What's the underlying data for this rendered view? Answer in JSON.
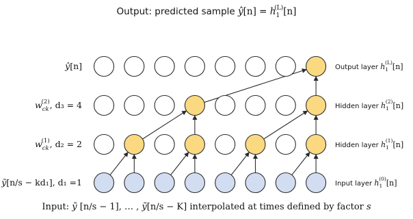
{
  "title": {
    "prefix": "Output: predicted sample ",
    "lhs_base": "ŷ",
    "lhs_arg": "[n]",
    "eq": " = ",
    "rhs_base": "h",
    "rhs_sub": "1",
    "rhs_sup": "(L)",
    "rhs_arg": "[n]"
  },
  "rows": [
    {
      "id": "output",
      "left": {
        "base": "ŷ",
        "sub": "",
        "sup": "",
        "tail": "[n]"
      },
      "right": {
        "text": "Output layer ",
        "base": "h",
        "sub": "1",
        "sup": "(L)",
        "arg": "[n]"
      },
      "fill": "#fbd980",
      "highlighted": [
        7
      ]
    },
    {
      "id": "hidden2",
      "left": {
        "base": "w",
        "sub": "ck",
        "sup": "(2)",
        "tail": ", d₃ = 4"
      },
      "right": {
        "text": "Hidden layer ",
        "base": "h",
        "sub": "1",
        "sup": "(2)",
        "arg": "[n]"
      },
      "fill": "#fbd980",
      "highlighted": [
        3,
        7
      ]
    },
    {
      "id": "hidden1",
      "left": {
        "base": "w",
        "sub": "ck",
        "sup": "(1)",
        "tail": ", d₂ = 2"
      },
      "right": {
        "text": "Hidden layer ",
        "base": "h",
        "sub": "1",
        "sup": "(1)",
        "arg": "[n]"
      },
      "fill": "#fbd980",
      "highlighted": [
        1,
        3,
        5,
        7
      ]
    },
    {
      "id": "input",
      "left": {
        "base": "ỹ",
        "sub": "",
        "sup": "",
        "tail": "[n/s − kd₁], d₁ =1"
      },
      "right": {
        "text": "Input layer ",
        "base": "h",
        "sub": "1",
        "sup": "(0)",
        "arg": "[n]"
      },
      "fill": "#d3ddf1",
      "highlighted": [
        0,
        1,
        2,
        3,
        4,
        5,
        6,
        7
      ]
    }
  ],
  "columns": 8,
  "edges": [
    {
      "from_row": "input",
      "from_col": 0,
      "to_row": "hidden1",
      "to_col": 1
    },
    {
      "from_row": "input",
      "from_col": 1,
      "to_row": "hidden1",
      "to_col": 1
    },
    {
      "from_row": "input",
      "from_col": 2,
      "to_row": "hidden1",
      "to_col": 3
    },
    {
      "from_row": "input",
      "from_col": 3,
      "to_row": "hidden1",
      "to_col": 3
    },
    {
      "from_row": "input",
      "from_col": 4,
      "to_row": "hidden1",
      "to_col": 5
    },
    {
      "from_row": "input",
      "from_col": 5,
      "to_row": "hidden1",
      "to_col": 5
    },
    {
      "from_row": "input",
      "from_col": 6,
      "to_row": "hidden1",
      "to_col": 7
    },
    {
      "from_row": "input",
      "from_col": 7,
      "to_row": "hidden1",
      "to_col": 7
    },
    {
      "from_row": "hidden1",
      "from_col": 1,
      "to_row": "hidden2",
      "to_col": 3
    },
    {
      "from_row": "hidden1",
      "from_col": 3,
      "to_row": "hidden2",
      "to_col": 3
    },
    {
      "from_row": "hidden1",
      "from_col": 5,
      "to_row": "hidden2",
      "to_col": 7
    },
    {
      "from_row": "hidden1",
      "from_col": 7,
      "to_row": "hidden2",
      "to_col": 7
    },
    {
      "from_row": "hidden2",
      "from_col": 3,
      "to_row": "output",
      "to_col": 7
    },
    {
      "from_row": "hidden2",
      "from_col": 7,
      "to_row": "output",
      "to_col": 7
    }
  ],
  "caption": {
    "p1": "Input: ",
    "y1": "ỹ",
    "p2": " [n/s − 1], … , ",
    "y2": "ỹ",
    "p3": "[n/s − K] interpolated at times defined by factor ",
    "s": "s"
  },
  "colors": {
    "plain_fill": "#ffffff",
    "stroke": "#2b2b2b",
    "text": "#111111"
  }
}
